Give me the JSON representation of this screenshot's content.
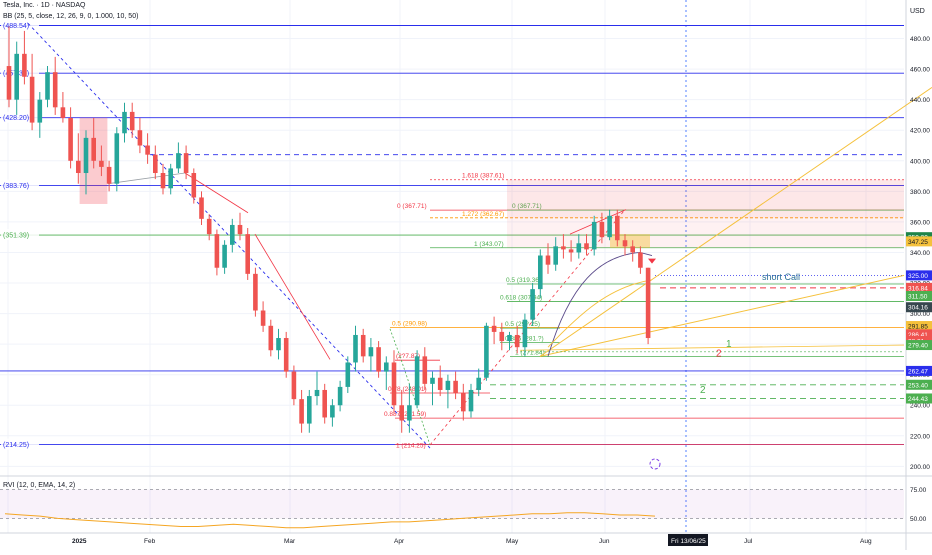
{
  "header": {
    "title": "Tesla, Inc. · 1D · NASDAQ",
    "indicator": "BB (25, 5, close, 12, 26, 9, 0, 1.000, 10, 50)"
  },
  "colors": {
    "up": "#26a69a",
    "down": "#ef5350",
    "level_blue": "#2a2eec",
    "level_green": "#4caf50",
    "level_red": "#f23645",
    "trend_yellow": "#f5c13c"
  },
  "chart_data": {
    "type": "candlestick",
    "symbol": "TSLA",
    "timeframe": "1D",
    "currency": "USD",
    "ylim": [
      195,
      500
    ],
    "y_ticks": [
      200,
      220,
      240,
      260,
      280,
      300,
      320,
      340,
      360,
      380,
      400,
      420,
      440,
      460,
      480
    ],
    "x_ticks": [
      "2025",
      "Feb",
      "Mar",
      "Apr",
      "May",
      "Jun",
      "Jul",
      "Aug"
    ],
    "crosshair_date": "Fri 13/06/25",
    "candles": [
      {
        "o": 462,
        "h": 488,
        "l": 435,
        "c": 440
      },
      {
        "o": 440,
        "h": 478,
        "l": 430,
        "c": 470
      },
      {
        "o": 470,
        "h": 485,
        "l": 450,
        "c": 455
      },
      {
        "o": 455,
        "h": 470,
        "l": 420,
        "c": 425
      },
      {
        "o": 425,
        "h": 445,
        "l": 415,
        "c": 440
      },
      {
        "o": 440,
        "h": 462,
        "l": 435,
        "c": 458
      },
      {
        "o": 458,
        "h": 468,
        "l": 430,
        "c": 435
      },
      {
        "o": 435,
        "h": 445,
        "l": 425,
        "c": 428
      },
      {
        "o": 428,
        "h": 435,
        "l": 395,
        "c": 400
      },
      {
        "o": 400,
        "h": 418,
        "l": 385,
        "c": 392
      },
      {
        "o": 392,
        "h": 420,
        "l": 378,
        "c": 415
      },
      {
        "o": 415,
        "h": 428,
        "l": 395,
        "c": 400
      },
      {
        "o": 400,
        "h": 410,
        "l": 390,
        "c": 396
      },
      {
        "o": 396,
        "h": 400,
        "l": 380,
        "c": 385
      },
      {
        "o": 385,
        "h": 422,
        "l": 380,
        "c": 418
      },
      {
        "o": 418,
        "h": 438,
        "l": 412,
        "c": 432
      },
      {
        "o": 432,
        "h": 438,
        "l": 415,
        "c": 420
      },
      {
        "o": 420,
        "h": 428,
        "l": 405,
        "c": 410
      },
      {
        "o": 410,
        "h": 418,
        "l": 398,
        "c": 404
      },
      {
        "o": 404,
        "h": 410,
        "l": 388,
        "c": 392
      },
      {
        "o": 392,
        "h": 398,
        "l": 378,
        "c": 382
      },
      {
        "o": 382,
        "h": 398,
        "l": 378,
        "c": 395
      },
      {
        "o": 395,
        "h": 412,
        "l": 392,
        "c": 405
      },
      {
        "o": 405,
        "h": 410,
        "l": 388,
        "c": 392
      },
      {
        "o": 392,
        "h": 395,
        "l": 372,
        "c": 376
      },
      {
        "o": 376,
        "h": 380,
        "l": 358,
        "c": 362
      },
      {
        "o": 362,
        "h": 365,
        "l": 348,
        "c": 352
      },
      {
        "o": 352,
        "h": 355,
        "l": 325,
        "c": 330
      },
      {
        "o": 330,
        "h": 348,
        "l": 326,
        "c": 345
      },
      {
        "o": 345,
        "h": 362,
        "l": 340,
        "c": 358
      },
      {
        "o": 358,
        "h": 366,
        "l": 348,
        "c": 352
      },
      {
        "o": 352,
        "h": 356,
        "l": 322,
        "c": 326
      },
      {
        "o": 326,
        "h": 330,
        "l": 298,
        "c": 302
      },
      {
        "o": 302,
        "h": 308,
        "l": 288,
        "c": 292
      },
      {
        "o": 292,
        "h": 296,
        "l": 272,
        "c": 276
      },
      {
        "o": 276,
        "h": 290,
        "l": 270,
        "c": 284
      },
      {
        "o": 284,
        "h": 288,
        "l": 258,
        "c": 262
      },
      {
        "o": 262,
        "h": 266,
        "l": 240,
        "c": 244
      },
      {
        "o": 244,
        "h": 250,
        "l": 222,
        "c": 228
      },
      {
        "o": 228,
        "h": 250,
        "l": 222,
        "c": 246
      },
      {
        "o": 246,
        "h": 262,
        "l": 240,
        "c": 250
      },
      {
        "o": 250,
        "h": 254,
        "l": 228,
        "c": 232
      },
      {
        "o": 232,
        "h": 244,
        "l": 226,
        "c": 240
      },
      {
        "o": 240,
        "h": 256,
        "l": 236,
        "c": 252
      },
      {
        "o": 252,
        "h": 272,
        "l": 248,
        "c": 268
      },
      {
        "o": 268,
        "h": 292,
        "l": 262,
        "c": 286
      },
      {
        "o": 286,
        "h": 290,
        "l": 268,
        "c": 272
      },
      {
        "o": 272,
        "h": 284,
        "l": 262,
        "c": 278
      },
      {
        "o": 278,
        "h": 282,
        "l": 258,
        "c": 262
      },
      {
        "o": 262,
        "h": 272,
        "l": 250,
        "c": 268
      },
      {
        "o": 268,
        "h": 276,
        "l": 235,
        "c": 240
      },
      {
        "o": 240,
        "h": 250,
        "l": 222,
        "c": 230
      },
      {
        "o": 230,
        "h": 254,
        "l": 222,
        "c": 240
      },
      {
        "o": 240,
        "h": 276,
        "l": 238,
        "c": 272
      },
      {
        "o": 272,
        "h": 278,
        "l": 250,
        "c": 254
      },
      {
        "o": 254,
        "h": 262,
        "l": 240,
        "c": 258
      },
      {
        "o": 258,
        "h": 266,
        "l": 246,
        "c": 250
      },
      {
        "o": 250,
        "h": 260,
        "l": 238,
        "c": 256
      },
      {
        "o": 256,
        "h": 262,
        "l": 244,
        "c": 248
      },
      {
        "o": 248,
        "h": 254,
        "l": 230,
        "c": 236
      },
      {
        "o": 236,
        "h": 254,
        "l": 232,
        "c": 250
      },
      {
        "o": 250,
        "h": 264,
        "l": 246,
        "c": 258
      },
      {
        "o": 258,
        "h": 294,
        "l": 256,
        "c": 292
      },
      {
        "o": 292,
        "h": 298,
        "l": 280,
        "c": 288
      },
      {
        "o": 288,
        "h": 294,
        "l": 276,
        "c": 282
      },
      {
        "o": 282,
        "h": 288,
        "l": 276,
        "c": 286
      },
      {
        "o": 286,
        "h": 292,
        "l": 274,
        "c": 278
      },
      {
        "o": 278,
        "h": 300,
        "l": 272,
        "c": 296
      },
      {
        "o": 296,
        "h": 320,
        "l": 292,
        "c": 316
      },
      {
        "o": 316,
        "h": 342,
        "l": 310,
        "c": 338
      },
      {
        "o": 338,
        "h": 346,
        "l": 326,
        "c": 332
      },
      {
        "o": 332,
        "h": 350,
        "l": 328,
        "c": 344
      },
      {
        "o": 344,
        "h": 352,
        "l": 336,
        "c": 342
      },
      {
        "o": 342,
        "h": 348,
        "l": 334,
        "c": 340
      },
      {
        "o": 340,
        "h": 352,
        "l": 336,
        "c": 346
      },
      {
        "o": 346,
        "h": 352,
        "l": 338,
        "c": 342
      },
      {
        "o": 342,
        "h": 364,
        "l": 338,
        "c": 360
      },
      {
        "o": 360,
        "h": 366,
        "l": 346,
        "c": 350
      },
      {
        "o": 350,
        "h": 368,
        "l": 348,
        "c": 364
      },
      {
        "o": 364,
        "h": 368,
        "l": 344,
        "c": 348
      },
      {
        "o": 348,
        "h": 352,
        "l": 338,
        "c": 344
      },
      {
        "o": 344,
        "h": 348,
        "l": 334,
        "c": 340
      },
      {
        "o": 340,
        "h": 344,
        "l": 326,
        "c": 330
      },
      {
        "o": 330,
        "h": 330,
        "l": 280,
        "c": 284
      }
    ],
    "horizontal_levels": [
      {
        "value": 488.54,
        "label": "(488.54)",
        "color": "#2a2eec"
      },
      {
        "value": 457.35,
        "label": "(457.35)",
        "color": "#2a2eec"
      },
      {
        "value": 428.2,
        "label": "(428.20)",
        "color": "#2a2eec"
      },
      {
        "value": 383.76,
        "label": "(383.76)",
        "color": "#2a2eec"
      },
      {
        "value": 351.39,
        "label": "(351.39)",
        "color": "#4caf50"
      },
      {
        "value": 262.47,
        "label": "262.47",
        "color": "#2a2eec"
      },
      {
        "value": 214.25,
        "label": "(214.25)",
        "color": "#2a2eec"
      }
    ],
    "fib_upper": [
      {
        "ratio": "1.618",
        "value": 387.61,
        "label": "1.618 (387.61)",
        "color": "#f23645",
        "dashed": true
      },
      {
        "ratio": "0",
        "value": 367.71,
        "label": "0 (367.71)",
        "color": "#f23645"
      },
      {
        "ratio": "1.272",
        "value": 362.67,
        "label": "1.272 (362.67)",
        "color": "#ff9800"
      },
      {
        "ratio": "0",
        "value": 367.71,
        "label": "0 (367.71)",
        "color": "#4caf50"
      },
      {
        "ratio": "1",
        "value": 343.07,
        "label": "1 (343.07)",
        "color": "#4caf50"
      },
      {
        "ratio": "0.5",
        "value": 319.36,
        "label": "0.5 (319.36)",
        "color": "#4caf50"
      },
      {
        "ratio": "0.618",
        "value": 307.94,
        "label": "0.618 (307.94)",
        "color": "#4caf50"
      }
    ],
    "fib_lower": [
      {
        "ratio": "0.5",
        "value": 290.98,
        "label": "0.5 (290.98)",
        "color": "#ff9800"
      },
      {
        "ratio": "0.5",
        "value": 290.5,
        "label": "0.5 (29?.25)",
        "color": "#4caf50"
      },
      {
        "ratio": "0.886",
        "value": 281.0,
        "label": "0.886 (281.?)",
        "color": "#4caf50"
      },
      {
        "ratio": "1",
        "value": 271.84,
        "label": "1 (271.84)",
        "color": "#4caf50"
      },
      {
        "ratio": "",
        "value": 269.5,
        "label": "(2?7.87)",
        "color": "#f23645"
      },
      {
        "ratio": "0.78",
        "value": 248.01,
        "label": "0.78 (248.01)",
        "color": "#f23645"
      },
      {
        "ratio": "0.887",
        "value": 231.59,
        "label": "0.887 (231.59)",
        "color": "#f23645"
      },
      {
        "ratio": "1",
        "value": 214.25,
        "label": "1 (214.25)",
        "color": "#f23645"
      }
    ],
    "price_badges": [
      {
        "value": 350.0,
        "label": "350.00",
        "bg": "#1e8449"
      },
      {
        "value": 347.25,
        "label": "347.25",
        "bg": "#f5c13c"
      },
      {
        "value": 325.0,
        "label": "325.00",
        "bg": "#2a2eec"
      },
      {
        "value": 316.84,
        "label": "316.84",
        "bg": "#ef5350"
      },
      {
        "value": 311.5,
        "label": "311.50",
        "bg": "#4caf50"
      },
      {
        "value": 304.16,
        "label": "304.16",
        "bg": "#37474f"
      },
      {
        "value": 291.85,
        "label": "291.85",
        "bg": "#f5c13c"
      },
      {
        "value": 286.41,
        "label": "286.41",
        "bg": "#ef5350"
      },
      {
        "value": 282.1,
        "label": "28:21",
        "bg": "#ef5350"
      },
      {
        "value": 279.4,
        "label": "279.40",
        "bg": "#4caf50"
      },
      {
        "value": 262.47,
        "label": "262.47",
        "bg": "#2a2eec"
      },
      {
        "value": 253.4,
        "label": "253.40",
        "bg": "#4caf50"
      },
      {
        "value": 244.43,
        "label": "244.43",
        "bg": "#4caf50"
      }
    ],
    "annotations": [
      {
        "text": "short Call",
        "color": "#2a6f97"
      },
      {
        "text": "1",
        "color": "#4caf50"
      },
      {
        "text": "2",
        "color": "#f23645"
      },
      {
        "text": "2",
        "color": "#4caf50"
      }
    ],
    "rvi": {
      "label": "RVI (12, 0, EMA, 14, 2)",
      "ticks": [
        75.0,
        50.0
      ],
      "ylim": [
        40,
        85
      ],
      "values": [
        54,
        53,
        52,
        50,
        49,
        48,
        47,
        46,
        45,
        44,
        43,
        43,
        44,
        45,
        44,
        43,
        42,
        42,
        43,
        44,
        45,
        46,
        47,
        47,
        48,
        49,
        50,
        51,
        52,
        53,
        54,
        54,
        55,
        55,
        54,
        53,
        53,
        52
      ]
    }
  }
}
